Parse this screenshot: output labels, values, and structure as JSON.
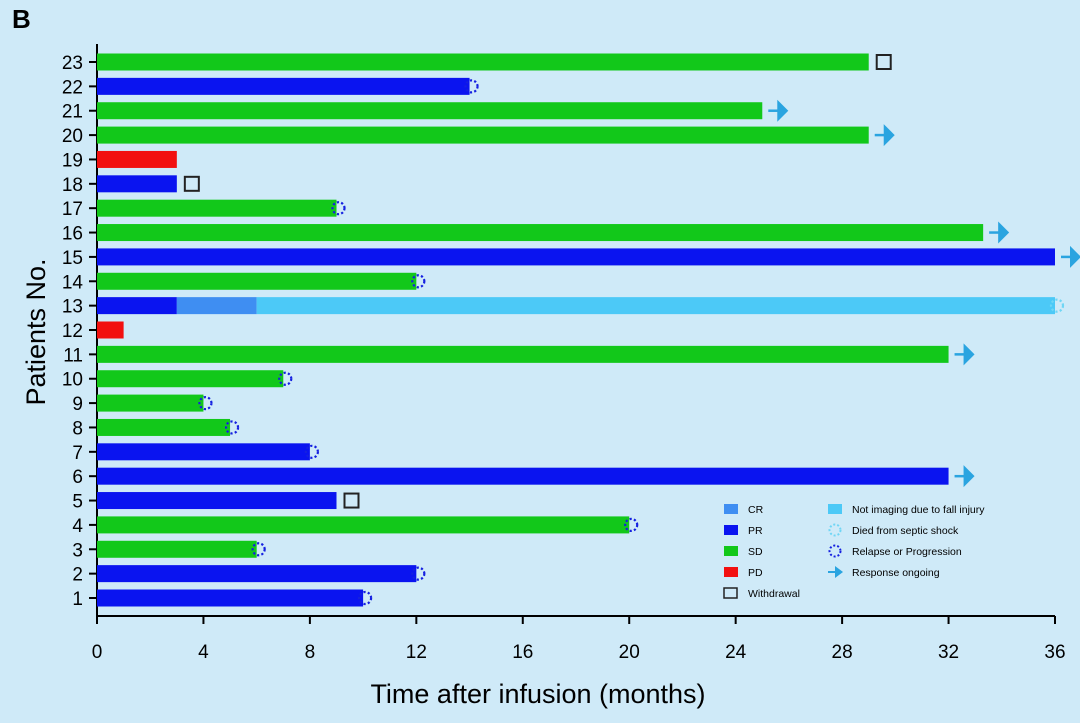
{
  "panel_label": "B",
  "chart_data": {
    "type": "bar",
    "orientation": "horizontal-swimmer",
    "xlabel": "Time after infusion (months)",
    "ylabel": "Patients No.",
    "xlim": [
      0,
      36
    ],
    "xticks": [
      0,
      4,
      8,
      12,
      16,
      20,
      24,
      28,
      32,
      36
    ],
    "yticks": [
      1,
      2,
      3,
      4,
      5,
      6,
      7,
      8,
      9,
      10,
      11,
      12,
      13,
      14,
      15,
      16,
      17,
      18,
      19,
      20,
      21,
      22,
      23
    ],
    "grid": false,
    "legend_position": "bottom-right",
    "colors": {
      "CR": "#3f8ef2",
      "PR": "#0a14f0",
      "SD": "#12c81a",
      "PD": "#f21010",
      "not_imaging": "#4cc9f7",
      "arrow": "#2aa4e0",
      "relapse_marker": "#1520e0",
      "died_marker": "#6fd6f5",
      "withdrawal": "#222222"
    },
    "legend": {
      "CR": "CR",
      "PR": "PR",
      "SD": "SD",
      "PD": "PD",
      "withdrawal": "Withdrawal",
      "not_imaging": "Not imaging due to fall injury",
      "died": "Died from septic shock",
      "relapse": "Relapse or Progression",
      "ongoing": "Response ongoing"
    },
    "patients": [
      {
        "id": 1,
        "segments": [
          {
            "status": "PR",
            "start": 0,
            "end": 10
          }
        ],
        "marker": "relapse"
      },
      {
        "id": 2,
        "segments": [
          {
            "status": "PR",
            "start": 0,
            "end": 12
          }
        ],
        "marker": "relapse"
      },
      {
        "id": 3,
        "segments": [
          {
            "status": "SD",
            "start": 0,
            "end": 6
          }
        ],
        "marker": "relapse"
      },
      {
        "id": 4,
        "segments": [
          {
            "status": "SD",
            "start": 0,
            "end": 20
          }
        ],
        "marker": "relapse"
      },
      {
        "id": 5,
        "segments": [
          {
            "status": "PR",
            "start": 0,
            "end": 9
          }
        ],
        "marker": "withdrawal"
      },
      {
        "id": 6,
        "segments": [
          {
            "status": "PR",
            "start": 0,
            "end": 32
          }
        ],
        "marker": "ongoing"
      },
      {
        "id": 7,
        "segments": [
          {
            "status": "PR",
            "start": 0,
            "end": 8
          }
        ],
        "marker": "relapse"
      },
      {
        "id": 8,
        "segments": [
          {
            "status": "SD",
            "start": 0,
            "end": 5
          }
        ],
        "marker": "relapse"
      },
      {
        "id": 9,
        "segments": [
          {
            "status": "SD",
            "start": 0,
            "end": 4
          }
        ],
        "marker": "relapse"
      },
      {
        "id": 10,
        "segments": [
          {
            "status": "SD",
            "start": 0,
            "end": 7
          }
        ],
        "marker": "relapse"
      },
      {
        "id": 11,
        "segments": [
          {
            "status": "SD",
            "start": 0,
            "end": 32
          }
        ],
        "marker": "ongoing"
      },
      {
        "id": 12,
        "segments": [
          {
            "status": "PD",
            "start": 0,
            "end": 1
          }
        ],
        "marker": null
      },
      {
        "id": 13,
        "segments": [
          {
            "status": "PR",
            "start": 0,
            "end": 3
          },
          {
            "status": "CR",
            "start": 3,
            "end": 6
          },
          {
            "status": "not_imaging",
            "start": 6,
            "end": 36
          }
        ],
        "marker": "died"
      },
      {
        "id": 14,
        "segments": [
          {
            "status": "SD",
            "start": 0,
            "end": 12
          }
        ],
        "marker": "relapse"
      },
      {
        "id": 15,
        "segments": [
          {
            "status": "PR",
            "start": 0,
            "end": 36
          }
        ],
        "marker": "ongoing"
      },
      {
        "id": 16,
        "segments": [
          {
            "status": "SD",
            "start": 0,
            "end": 33.3
          }
        ],
        "marker": "ongoing"
      },
      {
        "id": 17,
        "segments": [
          {
            "status": "SD",
            "start": 0,
            "end": 9
          }
        ],
        "marker": "relapse"
      },
      {
        "id": 18,
        "segments": [
          {
            "status": "PR",
            "start": 0,
            "end": 3
          }
        ],
        "marker": "withdrawal"
      },
      {
        "id": 19,
        "segments": [
          {
            "status": "PD",
            "start": 0,
            "end": 3
          }
        ],
        "marker": null
      },
      {
        "id": 20,
        "segments": [
          {
            "status": "SD",
            "start": 0,
            "end": 29
          }
        ],
        "marker": "ongoing"
      },
      {
        "id": 21,
        "segments": [
          {
            "status": "SD",
            "start": 0,
            "end": 25
          }
        ],
        "marker": "ongoing"
      },
      {
        "id": 22,
        "segments": [
          {
            "status": "PR",
            "start": 0,
            "end": 14
          }
        ],
        "marker": "relapse"
      },
      {
        "id": 23,
        "segments": [
          {
            "status": "SD",
            "start": 0,
            "end": 29
          }
        ],
        "marker": "withdrawal"
      }
    ]
  }
}
